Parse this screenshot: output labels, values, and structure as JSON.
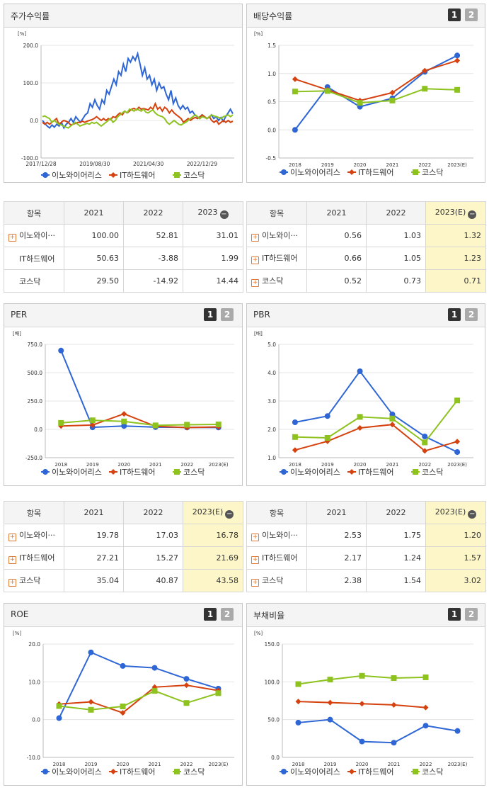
{
  "colors": {
    "s0": "#2e66d6",
    "s1": "#d5420f",
    "s2": "#8dc21f"
  },
  "legend": [
    "이노와이어리스",
    "IT하드웨어",
    "코스닥"
  ],
  "charts": {
    "stock": {
      "title": "주가수익률",
      "unit": "[%]"
    },
    "div": {
      "title": "배당수익률",
      "unit": "[%]"
    },
    "per": {
      "title": "PER",
      "unit": "[배]"
    },
    "pbr": {
      "title": "PBR",
      "unit": "[배]"
    },
    "roe": {
      "title": "ROE",
      "unit": "[%]"
    },
    "debt": {
      "title": "부채비율",
      "unit": "[%]"
    }
  },
  "pager": {
    "one": "1",
    "two": "2"
  },
  "tables": {
    "t1": {
      "h": [
        "항목",
        "2021",
        "2022",
        "2023"
      ],
      "rows": [
        [
          "이노와이···",
          "100.00",
          "52.81",
          "31.01"
        ],
        [
          "IT하드웨어",
          "50.63",
          "-3.88",
          "1.99"
        ],
        [
          "코스닥",
          "29.50",
          "-14.92",
          "14.44"
        ]
      ]
    },
    "t2": {
      "h": [
        "항목",
        "2021",
        "2022",
        "2023(E)"
      ],
      "rows": [
        [
          "이노와이···",
          "0.56",
          "1.03",
          "1.32"
        ],
        [
          "IT하드웨어",
          "0.66",
          "1.05",
          "1.23"
        ],
        [
          "코스닥",
          "0.52",
          "0.73",
          "0.71"
        ]
      ]
    },
    "t3": {
      "h": [
        "항목",
        "2021",
        "2022",
        "2023(E)"
      ],
      "rows": [
        [
          "이노와이···",
          "19.78",
          "17.03",
          "16.78"
        ],
        [
          "IT하드웨어",
          "27.21",
          "15.27",
          "21.69"
        ],
        [
          "코스닥",
          "35.04",
          "40.87",
          "43.58"
        ]
      ]
    },
    "t4": {
      "h": [
        "항목",
        "2021",
        "2022",
        "2023(E)"
      ],
      "rows": [
        [
          "이노와이···",
          "2.53",
          "1.75",
          "1.20"
        ],
        [
          "IT하드웨어",
          "2.17",
          "1.24",
          "1.57"
        ],
        [
          "코스닥",
          "2.38",
          "1.54",
          "3.02"
        ]
      ]
    }
  },
  "chart_data": [
    {
      "id": "stock",
      "type": "line",
      "title": "주가수익률",
      "ylabel": "[%]",
      "ylim": [
        -100,
        200
      ],
      "yticks": [
        "200.0",
        "100.0",
        "0.0",
        "-100.0"
      ],
      "xticklabels": [
        "2017/12/28",
        "2019/08/30",
        "2021/04/30",
        "2022/12/29"
      ],
      "series": [
        {
          "name": "이노와이어리스",
          "values": [
            0,
            -8,
            -15,
            -20,
            -12,
            -18,
            -10,
            -15,
            -5,
            -20,
            -10,
            -5,
            5,
            -5,
            10,
            2,
            -5,
            5,
            15,
            20,
            45,
            35,
            55,
            40,
            30,
            55,
            45,
            80,
            70,
            90,
            110,
            95,
            130,
            120,
            150,
            130,
            165,
            155,
            170,
            160,
            178,
            150,
            120,
            140,
            110,
            120,
            95,
            110,
            80,
            100,
            85,
            90,
            70,
            55,
            80,
            45,
            60,
            40,
            30,
            40,
            30,
            35,
            20,
            25,
            15,
            10,
            5,
            15,
            10,
            5,
            8,
            15,
            5,
            10,
            0,
            8,
            -2,
            10,
            20,
            30,
            18
          ],
          "note": "approximate readings"
        },
        {
          "name": "IT하드웨어",
          "values": [
            -5,
            -10,
            -5,
            -10,
            -5,
            0,
            5,
            -10,
            -5,
            0,
            -2,
            -5,
            -12,
            -10,
            -8,
            -5,
            -5,
            -2,
            -5,
            -2,
            0,
            2,
            5,
            10,
            5,
            0,
            5,
            0,
            5,
            2,
            10,
            8,
            15,
            20,
            15,
            25,
            20,
            25,
            30,
            32,
            28,
            35,
            30,
            32,
            30,
            28,
            35,
            30,
            45,
            30,
            35,
            25,
            35,
            30,
            20,
            28,
            20,
            15,
            10,
            5,
            -5,
            0,
            5,
            0,
            5,
            8,
            5,
            10,
            15,
            10,
            5,
            10,
            0,
            -5,
            0,
            -10,
            -5,
            0,
            -5,
            0,
            -5,
            -2
          ],
          "note": "approximate readings"
        },
        {
          "name": "코스닥",
          "values": [
            10,
            12,
            8,
            5,
            -5,
            0,
            -5,
            -10,
            -12,
            -15,
            -18,
            -20,
            -15,
            -10,
            -5,
            -10,
            -15,
            -12,
            -10,
            -8,
            -10,
            -5,
            -8,
            -5,
            -10,
            -15,
            -10,
            -5,
            0,
            5,
            -5,
            0,
            10,
            15,
            20,
            25,
            20,
            30,
            28,
            25,
            30,
            28,
            25,
            30,
            22,
            20,
            25,
            28,
            20,
            15,
            12,
            10,
            5,
            -5,
            -10,
            -5,
            0,
            -5,
            -10,
            -12,
            -8,
            -5,
            0,
            5,
            10,
            15,
            10,
            5,
            10,
            8,
            5,
            10,
            15,
            12,
            10,
            8,
            5,
            10,
            12,
            15,
            10,
            15
          ],
          "note": "approximate readings"
        }
      ]
    },
    {
      "id": "div",
      "type": "line",
      "title": "배당수익률",
      "ylabel": "[%]",
      "ylim": [
        -0.5,
        1.5
      ],
      "yticks": [
        "1.5",
        "1.0",
        "0.5",
        "0.0",
        "-0.5"
      ],
      "categories": [
        "2018",
        "2019",
        "2020",
        "2021",
        "2022",
        "2023(E)"
      ],
      "series": [
        {
          "name": "이노와이어리스",
          "values": [
            0.0,
            0.76,
            0.41,
            0.56,
            1.03,
            1.32
          ]
        },
        {
          "name": "IT하드웨어",
          "values": [
            0.9,
            0.71,
            0.52,
            0.66,
            1.05,
            1.23
          ]
        },
        {
          "name": "코스닥",
          "values": [
            0.68,
            0.69,
            0.48,
            0.52,
            0.73,
            0.71
          ]
        }
      ]
    },
    {
      "id": "per",
      "type": "line",
      "title": "PER",
      "ylabel": "[배]",
      "ylim": [
        -250,
        750
      ],
      "yticks": [
        "750.0",
        "500.0",
        "250.0",
        "0.0",
        "-250.0"
      ],
      "categories": [
        "2018",
        "2019",
        "2020",
        "2021",
        "2022",
        "2023(E)"
      ],
      "series": [
        {
          "name": "이노와이어리스",
          "values": [
            695,
            18,
            30,
            19.78,
            17.03,
            16.78
          ]
        },
        {
          "name": "IT하드웨어",
          "values": [
            30,
            38,
            137,
            27.21,
            15.27,
            21.69
          ]
        },
        {
          "name": "코스닥",
          "values": [
            57,
            80,
            70,
            35.04,
            40.87,
            43.58
          ]
        }
      ]
    },
    {
      "id": "pbr",
      "type": "line",
      "title": "PBR",
      "ylabel": "[배]",
      "ylim": [
        1.0,
        5.0
      ],
      "yticks": [
        "5.0",
        "4.0",
        "3.0",
        "2.0",
        "1.0"
      ],
      "categories": [
        "2018",
        "2019",
        "2020",
        "2021",
        "2022",
        "2023(E)"
      ],
      "series": [
        {
          "name": "이노와이어리스",
          "values": [
            2.25,
            2.47,
            4.05,
            2.53,
            1.75,
            1.2
          ]
        },
        {
          "name": "IT하드웨어",
          "values": [
            1.27,
            1.58,
            2.05,
            2.17,
            1.24,
            1.57
          ]
        },
        {
          "name": "코스닥",
          "values": [
            1.73,
            1.7,
            2.44,
            2.38,
            1.54,
            3.02
          ]
        }
      ]
    },
    {
      "id": "roe",
      "type": "line",
      "title": "ROE",
      "ylabel": "[%]",
      "ylim": [
        -10,
        20
      ],
      "yticks": [
        "20.0",
        "10.0",
        "0.0",
        "-10.0"
      ],
      "categories": [
        "2018",
        "2019",
        "2020",
        "2021",
        "2022",
        "2023(E)"
      ],
      "series": [
        {
          "name": "이노와이어리스",
          "values": [
            0.4,
            17.8,
            14.2,
            13.7,
            10.8,
            8.2
          ]
        },
        {
          "name": "IT하드웨어",
          "values": [
            4.1,
            4.7,
            1.8,
            8.6,
            9.1,
            7.7
          ]
        },
        {
          "name": "코스닥",
          "values": [
            3.6,
            2.6,
            3.5,
            7.6,
            4.4,
            7.0
          ]
        }
      ]
    },
    {
      "id": "debt",
      "type": "line",
      "title": "부채비율",
      "ylabel": "[%]",
      "ylim": [
        0,
        150
      ],
      "yticks": [
        "150.0",
        "100.0",
        "50.0",
        "0.0"
      ],
      "categories": [
        "2018",
        "2019",
        "2020",
        "2021",
        "2022",
        "2023(E)"
      ],
      "series": [
        {
          "name": "이노와이어리스",
          "values": [
            46,
            50,
            21,
            19.5,
            42,
            35
          ]
        },
        {
          "name": "IT하드웨어",
          "values": [
            74,
            72.5,
            71,
            69.5,
            66,
            null
          ]
        },
        {
          "name": "코스닥",
          "values": [
            97,
            103,
            108,
            105,
            106,
            null
          ]
        }
      ]
    }
  ]
}
